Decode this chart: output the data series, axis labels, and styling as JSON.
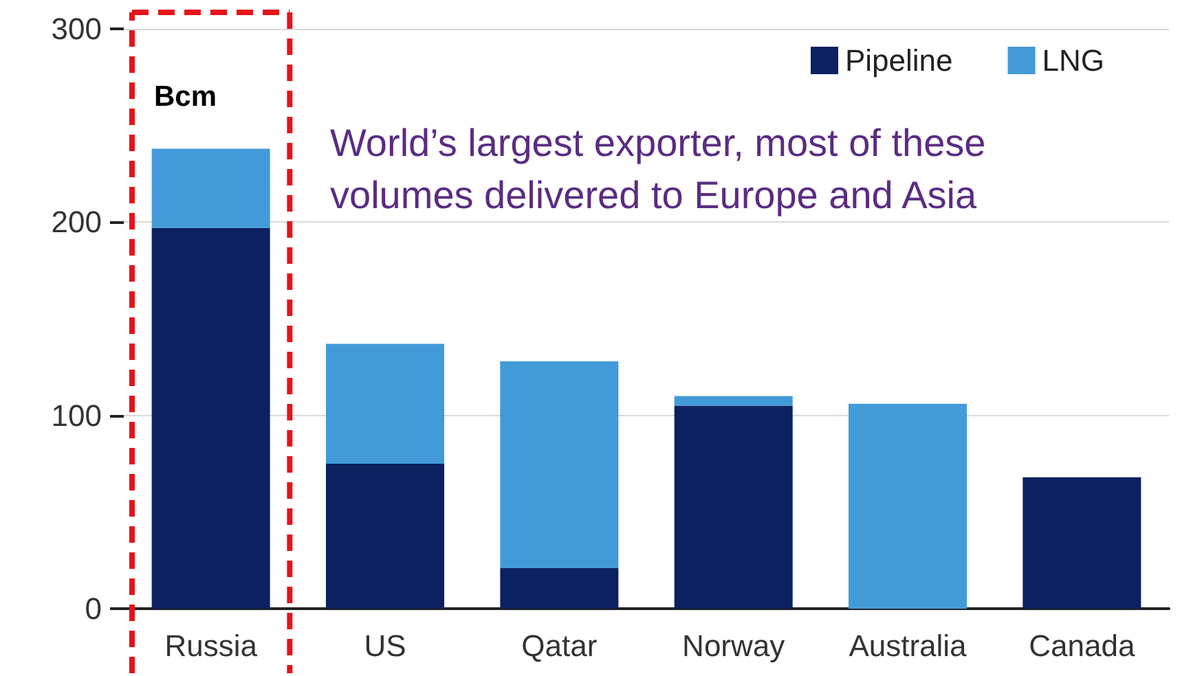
{
  "chart_data": {
    "type": "bar",
    "stacked": true,
    "ylabel": "Bcm",
    "categories": [
      "Russia",
      "US",
      "Qatar",
      "Norway",
      "Australia",
      "Canada"
    ],
    "series": [
      {
        "name": "Pipeline",
        "color": "#0b2160",
        "values": [
          197,
          75,
          21,
          105,
          0,
          68
        ]
      },
      {
        "name": "LNG",
        "color": "#429bd8",
        "values": [
          41,
          62,
          107,
          5,
          106,
          0
        ]
      }
    ],
    "ylim": [
      0,
      300
    ],
    "yticks": [
      0,
      100,
      200,
      300
    ],
    "grid": "y",
    "legend": "top right",
    "annotations": [
      "World’s largest exporter, most of these volumes delivered to Europe and Asia"
    ]
  }
}
